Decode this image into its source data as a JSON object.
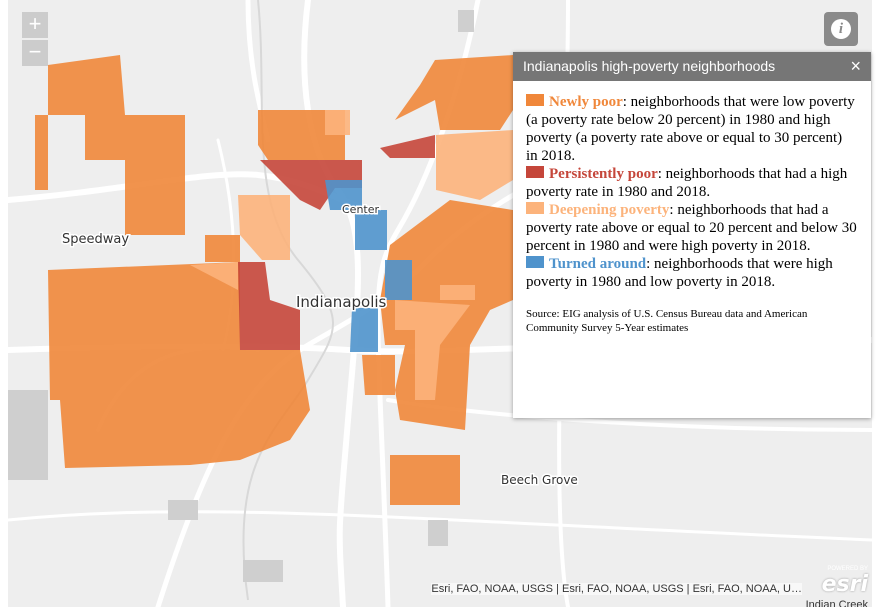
{
  "map": {
    "labels": [
      "Speedway",
      "Center",
      "Indianapolis",
      "Beech Grove"
    ],
    "attribution": "Esri, FAO, NOAA, USGS | Esri, FAO, NOAA, USGS | Esri, FAO, NOAA, U…",
    "powered_by": "POWERED BY",
    "logo": "esri",
    "edge_label": "Indian Creek"
  },
  "zoom_controls": [
    "+",
    "−"
  ],
  "info_button": "i",
  "popup": {
    "title": "Indianapolis high-poverty neighborhoods",
    "close": "×",
    "legend": [
      {
        "term": "Newly poor",
        "color": "#f0873a",
        "description": ": neighborhoods that were low poverty (a poverty rate below 20 percent) in 1980 and high poverty (a poverty rate above or equal to 30 percent) in 2018."
      },
      {
        "term": "Persistently poor",
        "color": "#c5463a",
        "description": ": neighborhoods that had a high poverty rate in 1980 and 2018."
      },
      {
        "term": "Deepening poverty",
        "color": "#fcb37b",
        "description": ": neighborhoods that had a poverty rate above or equal to 20 percent and below 30 percent in 1980 and were high poverty in 2018."
      },
      {
        "term": "Turned around",
        "color": "#4f93cc",
        "description": ": neighborhoods that were high poverty in 1980 and low poverty in 2018."
      }
    ],
    "source": "Source: EIG analysis of U.S. Census Bureau data and American Community Survey 5-Year estimates"
  }
}
